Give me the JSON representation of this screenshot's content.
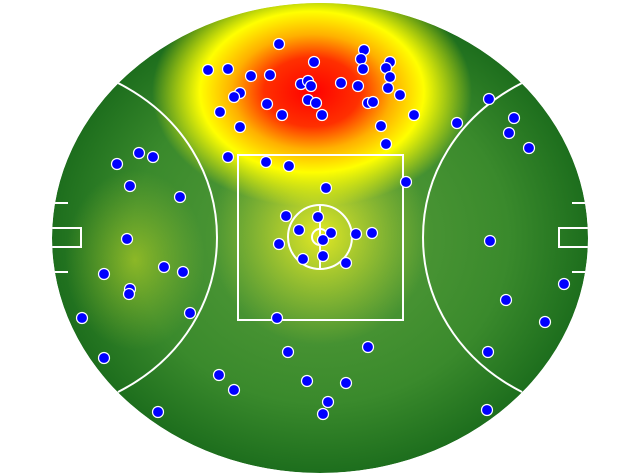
{
  "chart_data": {
    "type": "scatter",
    "color": "#0000ff",
    "xlim": [
      0,
      536
    ],
    "ylim": [
      0,
      470
    ],
    "x": [
      227,
      312,
      309,
      338,
      334,
      262,
      156,
      176,
      199,
      218,
      311,
      338,
      249,
      256,
      259,
      289,
      306,
      336,
      188,
      182,
      348,
      256,
      264,
      215,
      316,
      321,
      168,
      230,
      270,
      362,
      188,
      329,
      334,
      176,
      214,
      237,
      405,
      437,
      462,
      457,
      477,
      65,
      87,
      101,
      78,
      128,
      75,
      52,
      112,
      131,
      78,
      77,
      30,
      138,
      52,
      106,
      354,
      274,
      234,
      266,
      247,
      279,
      271,
      227,
      304,
      320,
      251,
      271,
      294,
      225,
      438,
      512,
      454,
      493,
      436,
      435,
      236,
      316,
      167,
      182,
      255,
      294,
      276,
      271
    ],
    "y": [
      429,
      423,
      414,
      411,
      405,
      411,
      403,
      404,
      397,
      398,
      404,
      396,
      389,
      392,
      387,
      390,
      387,
      385,
      380,
      376,
      378,
      373,
      370,
      369,
      370,
      371,
      361,
      358,
      358,
      358,
      346,
      347,
      329,
      316,
      311,
      307,
      350,
      374,
      355,
      340,
      325,
      309,
      320,
      316,
      287,
      276,
      234,
      199,
      206,
      201,
      184,
      179,
      155,
      160,
      115,
      61,
      291,
      285,
      257,
      256,
      243,
      240,
      233,
      229,
      239,
      240,
      214,
      217,
      210,
      155,
      232,
      189,
      173,
      151,
      121,
      63,
      121,
      126,
      98,
      83,
      92,
      90,
      71,
      59
    ]
  }
}
